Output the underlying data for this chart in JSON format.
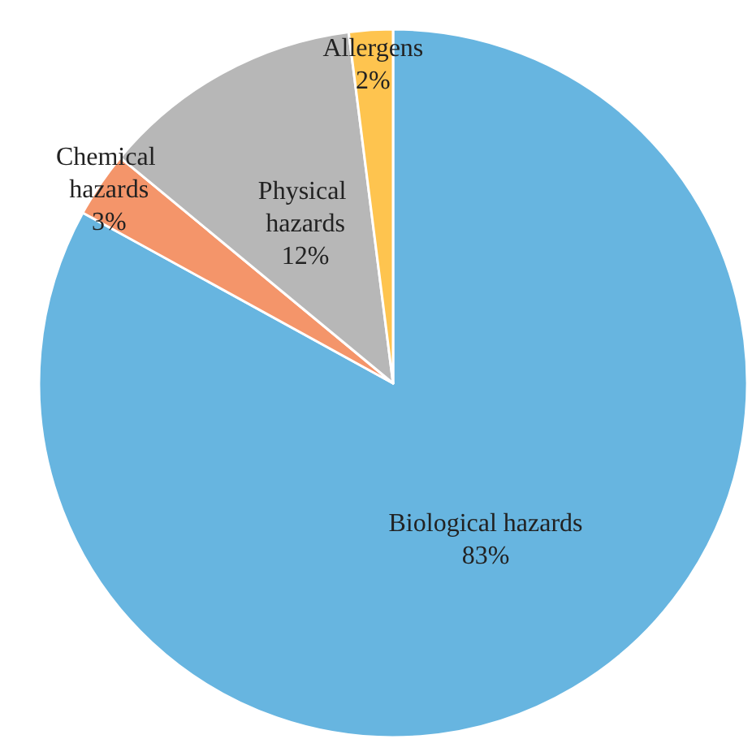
{
  "chart_data": {
    "type": "pie",
    "categories": [
      "Biological hazards",
      "Chemical hazards",
      "Physical hazards",
      "Allergens"
    ],
    "values": [
      83,
      3,
      12,
      2
    ],
    "colors": [
      "#67b5e0",
      "#f4956a",
      "#b7b7b7",
      "#fec44f"
    ],
    "value_labels": [
      "83%",
      "3%",
      "12%",
      "2%"
    ],
    "legend": false
  }
}
